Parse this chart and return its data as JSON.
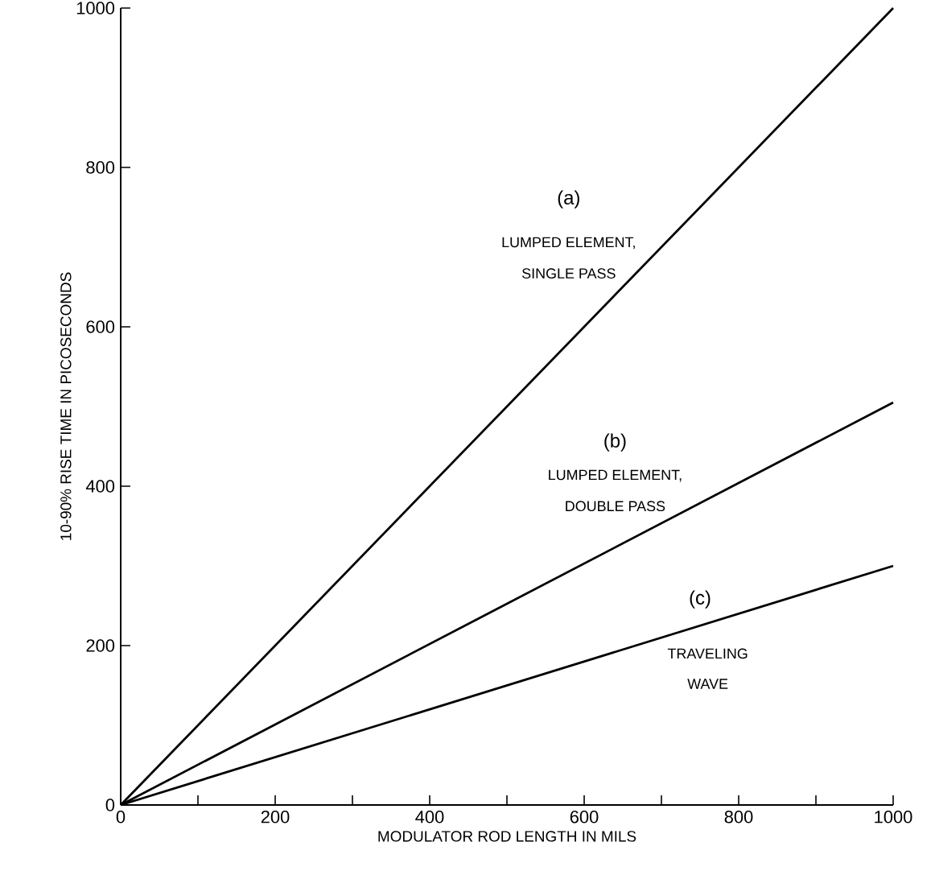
{
  "chart_data": {
    "type": "line",
    "xlabel": "MODULATOR ROD LENGTH IN MILS",
    "ylabel": "10-90% RISE TIME IN PICOSECONDS",
    "x": [
      0,
      1000
    ],
    "series": [
      {
        "color": "#000000",
        "values": [
          0,
          1000
        ]
      },
      {
        "color": "#000000",
        "values": [
          0,
          505
        ]
      },
      {
        "color": "#000000",
        "values": [
          0,
          300
        ]
      }
    ],
    "xlim": [
      0,
      1000
    ],
    "ylim": [
      0,
      1000
    ],
    "xticks": [
      0,
      200,
      400,
      600,
      800,
      1000
    ],
    "yticks": [
      0,
      200,
      400,
      600,
      800,
      1000
    ],
    "grid": false,
    "marker": "none",
    "line_style": "solid",
    "annotations": [
      "(a)",
      "LUMPED ELEMENT,",
      "SINGLE PASS",
      "(b)",
      "LUMPED ELEMENT,",
      "DOUBLE PASS",
      "(c)",
      "TRAVELING",
      "WAVE"
    ]
  }
}
